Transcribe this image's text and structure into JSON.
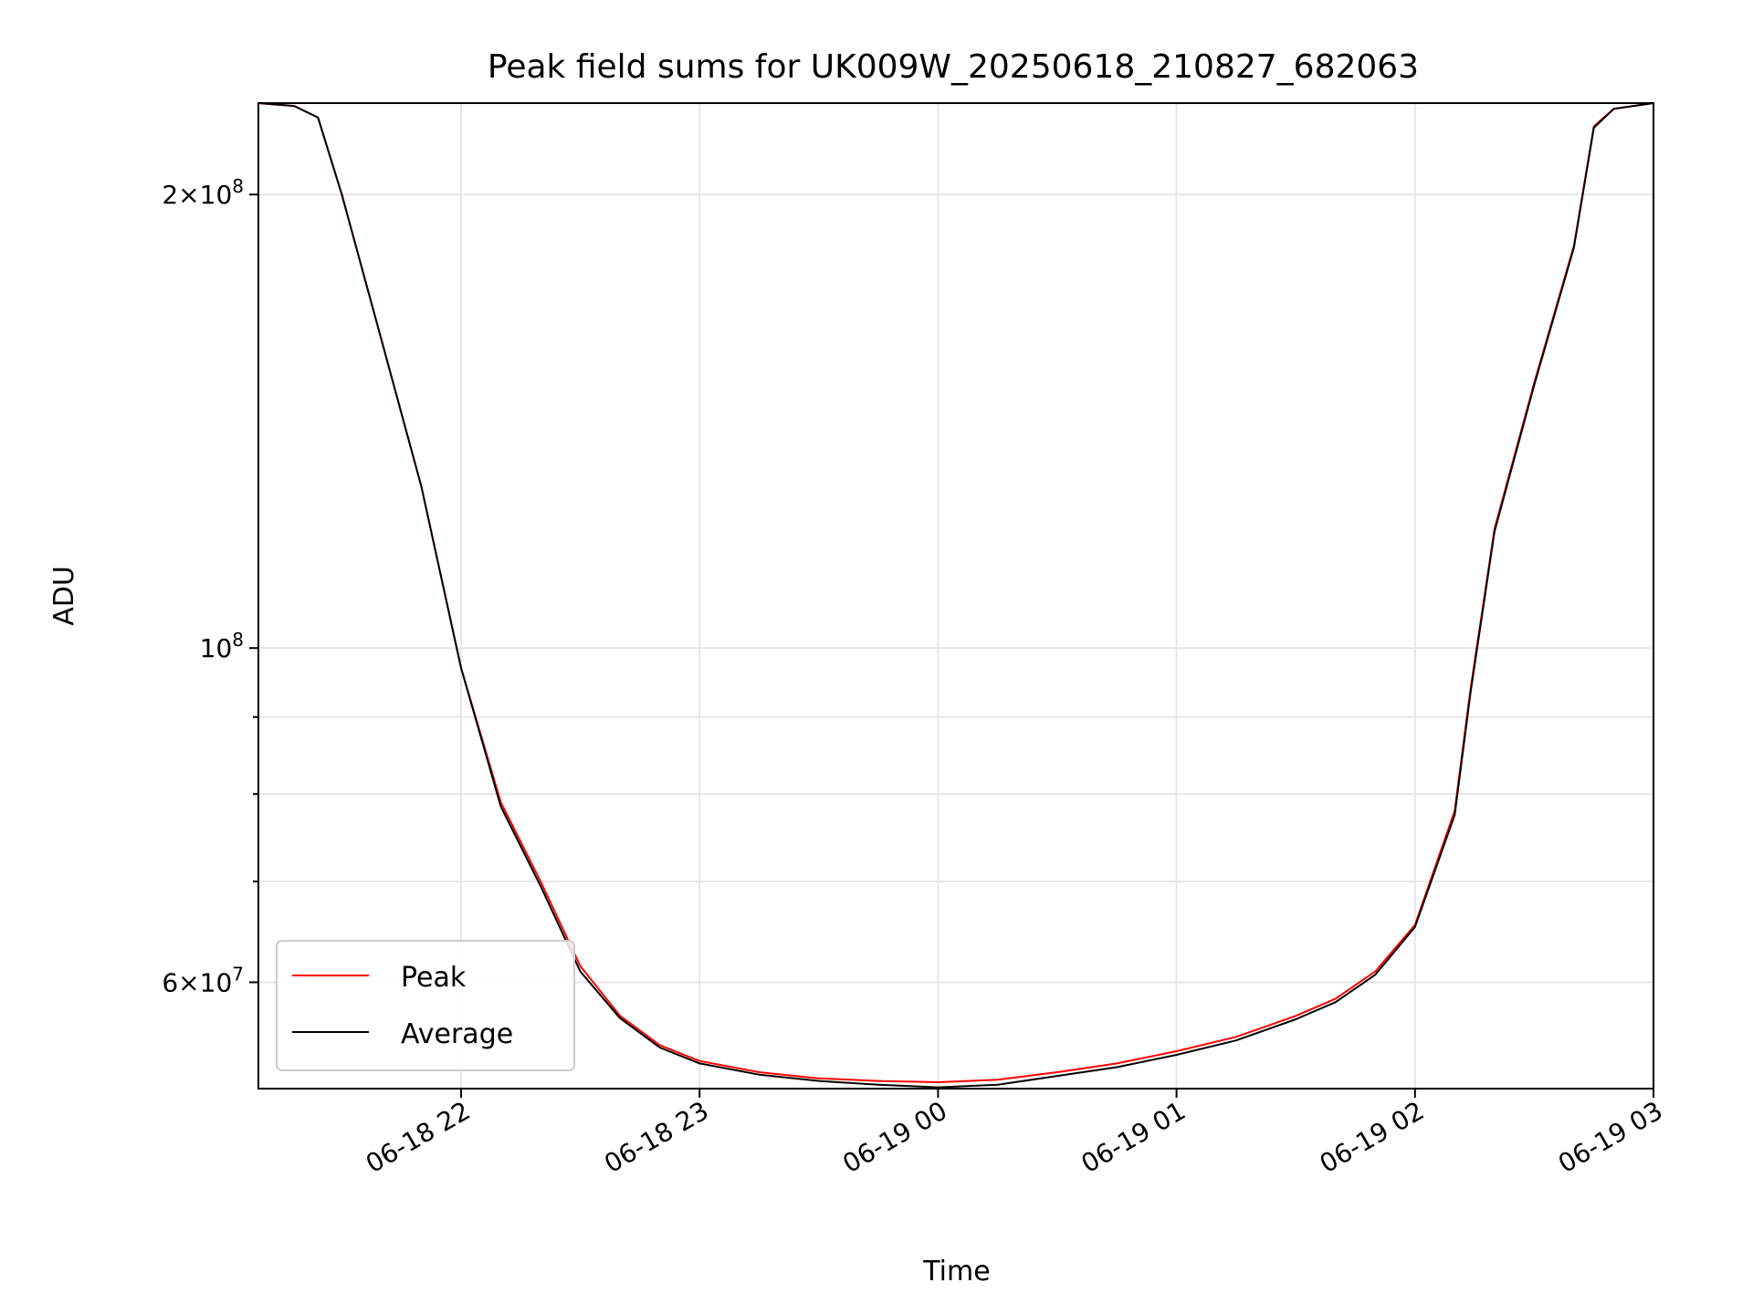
{
  "chart_data": {
    "type": "line",
    "title": "Peak field sums for UK009W_20250618_210827_682063",
    "xlabel": "Time",
    "ylabel": "ADU",
    "y_scale": "log",
    "grid": true,
    "legend_position": "lower-left",
    "xlim": [
      "2025-06-18 21:09",
      "2025-06-19 03:00"
    ],
    "ylim": [
      51000000,
      230000000
    ],
    "x_ticks": [
      "2025-06-18 22:00",
      "2025-06-18 23:00",
      "2025-06-19 00:00",
      "2025-06-19 01:00",
      "2025-06-19 02:00",
      "2025-06-19 03:00"
    ],
    "x_tick_labels": [
      "06-18 22",
      "06-18 23",
      "06-19 00",
      "06-19 01",
      "06-19 02",
      "06-19 03"
    ],
    "y_major_ticks": [
      {
        "value": 200000000,
        "mantissa": "2",
        "exponent": "8"
      },
      {
        "value": 100000000,
        "mantissa": "",
        "exponent": "8"
      },
      {
        "value": 60000000,
        "mantissa": "6",
        "exponent": "7"
      }
    ],
    "y_minor_ticks": [
      90000000,
      80000000,
      70000000,
      50000000
    ],
    "series": [
      {
        "name": "Peak",
        "color": "#ff0000",
        "x": [
          "2025-06-18 21:09",
          "2025-06-18 21:18",
          "2025-06-18 21:24",
          "2025-06-18 21:30",
          "2025-06-18 21:40",
          "2025-06-18 21:50",
          "2025-06-18 22:00",
          "2025-06-18 22:10",
          "2025-06-18 22:20",
          "2025-06-18 22:30",
          "2025-06-18 22:40",
          "2025-06-18 22:50",
          "2025-06-18 23:00",
          "2025-06-18 23:15",
          "2025-06-18 23:30",
          "2025-06-18 23:45",
          "2025-06-19 00:00",
          "2025-06-19 00:15",
          "2025-06-19 00:30",
          "2025-06-19 00:45",
          "2025-06-19 01:00",
          "2025-06-19 01:15",
          "2025-06-19 01:30",
          "2025-06-19 01:40",
          "2025-06-19 01:50",
          "2025-06-19 02:00",
          "2025-06-19 02:10",
          "2025-06-19 02:14",
          "2025-06-19 02:20",
          "2025-06-19 02:30",
          "2025-06-19 02:40",
          "2025-06-19 02:45",
          "2025-06-19 02:50",
          "2025-06-19 03:00"
        ],
        "values": [
          230000000,
          229000000,
          225000000,
          200000000,
          160000000,
          128000000,
          97000000,
          79000000,
          70000000,
          61500000,
          57000000,
          54500000,
          53200000,
          52300000,
          51800000,
          51600000,
          51500000,
          51700000,
          52300000,
          53000000,
          54000000,
          55200000,
          57000000,
          58500000,
          61000000,
          65500000,
          78000000,
          94000000,
          120000000,
          150000000,
          185000000,
          222000000,
          228000000,
          230000000
        ]
      },
      {
        "name": "Average",
        "color": "#000000",
        "x": [
          "2025-06-18 21:09",
          "2025-06-18 21:18",
          "2025-06-18 21:24",
          "2025-06-18 21:30",
          "2025-06-18 21:40",
          "2025-06-18 21:50",
          "2025-06-18 22:00",
          "2025-06-18 22:10",
          "2025-06-18 22:20",
          "2025-06-18 22:30",
          "2025-06-18 22:40",
          "2025-06-18 22:50",
          "2025-06-18 23:00",
          "2025-06-18 23:15",
          "2025-06-18 23:30",
          "2025-06-18 23:45",
          "2025-06-19 00:00",
          "2025-06-19 00:15",
          "2025-06-19 00:30",
          "2025-06-19 00:45",
          "2025-06-19 01:00",
          "2025-06-19 01:15",
          "2025-06-19 01:30",
          "2025-06-19 01:40",
          "2025-06-19 01:50",
          "2025-06-19 02:00",
          "2025-06-19 02:10",
          "2025-06-19 02:14",
          "2025-06-19 02:20",
          "2025-06-19 02:30",
          "2025-06-19 02:40",
          "2025-06-19 02:45",
          "2025-06-19 02:50",
          "2025-06-19 03:00"
        ],
        "values": [
          230000000,
          229000000,
          225000000,
          200000000,
          160000000,
          128000000,
          97000000,
          78500000,
          69500000,
          61000000,
          56800000,
          54300000,
          53000000,
          52100000,
          51600000,
          51300000,
          51100000,
          51300000,
          52000000,
          52700000,
          53700000,
          54900000,
          56700000,
          58200000,
          60700000,
          65300000,
          77500000,
          93500000,
          119500000,
          149500000,
          184500000,
          221500000,
          228000000,
          230000000
        ]
      }
    ]
  }
}
